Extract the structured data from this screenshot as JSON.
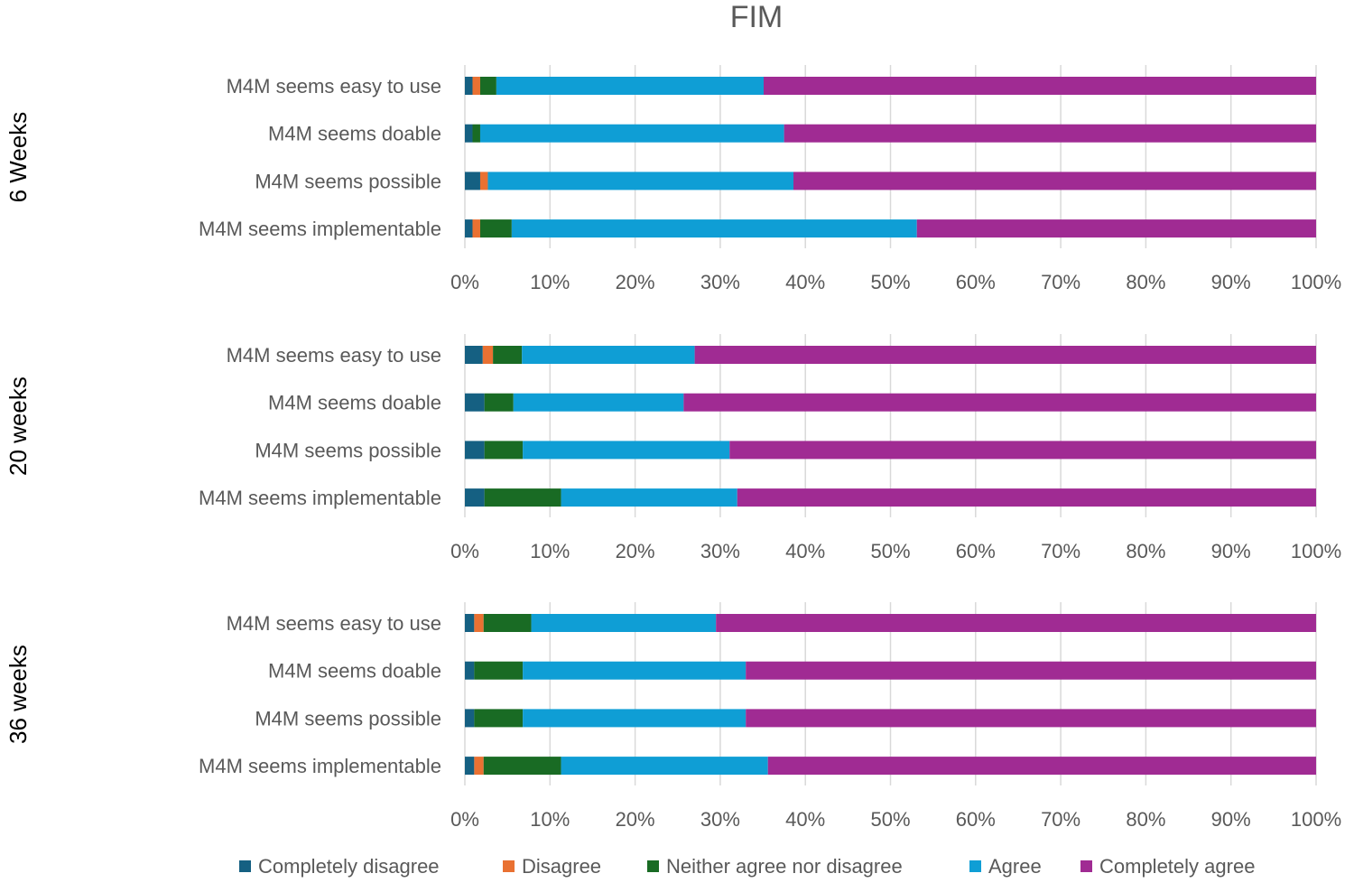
{
  "chart_data": {
    "type": "bar",
    "subtype": "stacked-horizontal-100",
    "title": "FIM",
    "xlim": [
      0,
      100
    ],
    "xticks": [
      "0%",
      "10%",
      "20%",
      "30%",
      "40%",
      "50%",
      "60%",
      "70%",
      "80%",
      "90%",
      "100%"
    ],
    "grid": true,
    "legend_position": "bottom",
    "series_names": [
      "Completely disagree",
      "Disagree",
      "Neither agree nor disagree",
      "Agree",
      "Completely agree"
    ],
    "series_colors": [
      "#156082",
      "#E97132",
      "#196B24",
      "#0F9ED5",
      "#A02B93"
    ],
    "panels": [
      {
        "label": "6 Weeks",
        "categories": [
          "M4M seems easy to use",
          "M4M seems doable",
          "M4M seems possible",
          "M4M seems implementable"
        ],
        "values": [
          [
            0.9,
            0.9,
            1.9,
            31.4,
            64.9
          ],
          [
            0.9,
            0.0,
            0.9,
            35.7,
            62.5
          ],
          [
            1.8,
            0.9,
            0.0,
            35.9,
            61.4
          ],
          [
            0.9,
            0.9,
            3.7,
            47.6,
            46.9
          ]
        ]
      },
      {
        "label": "20 weeks",
        "categories": [
          "M4M seems easy to use",
          "M4M seems doable",
          "M4M seems possible",
          "M4M seems implementable"
        ],
        "values": [
          [
            2.1,
            1.2,
            3.4,
            20.3,
            73.0
          ],
          [
            2.3,
            0.0,
            3.4,
            20.0,
            74.3
          ],
          [
            2.3,
            0.0,
            4.5,
            24.3,
            68.9
          ],
          [
            2.3,
            0.0,
            9.0,
            20.7,
            68.0
          ]
        ]
      },
      {
        "label": "36 weeks",
        "categories": [
          "M4M seems easy to use",
          "M4M seems doable",
          "M4M seems possible",
          "M4M seems implementable"
        ],
        "values": [
          [
            1.1,
            1.1,
            5.6,
            21.7,
            70.5
          ],
          [
            1.1,
            0.0,
            5.7,
            26.2,
            67.0
          ],
          [
            1.1,
            0.0,
            5.7,
            26.2,
            67.0
          ],
          [
            1.1,
            1.1,
            9.1,
            24.3,
            64.4
          ]
        ]
      }
    ]
  }
}
